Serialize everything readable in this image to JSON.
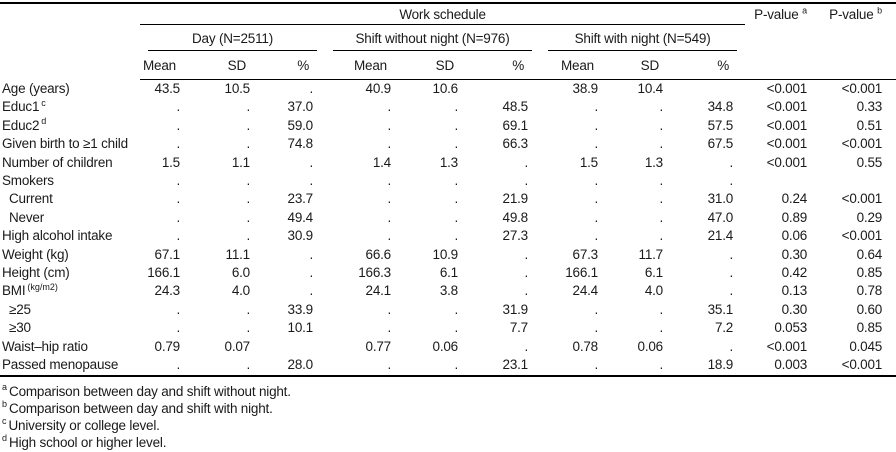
{
  "table": {
    "span_header": "Work schedule",
    "pvalue_headers": [
      {
        "label": "P-value",
        "sup": "a"
      },
      {
        "label": "P-value",
        "sup": "b"
      }
    ],
    "groups": [
      "Day (N=2511)",
      "Shift without night (N=976)",
      "Shift with night (N=549)"
    ],
    "subheaders": [
      "Mean",
      "SD",
      "%"
    ],
    "rows": [
      {
        "label": "Age (years)",
        "sup": "",
        "indent": false,
        "cells": [
          "43.5",
          "10.5",
          ".",
          "40.9",
          "10.6",
          "",
          "38.9",
          "10.4",
          "",
          "<0.001",
          "<0.001"
        ]
      },
      {
        "label": "Educ1",
        "sup": "c",
        "indent": false,
        "cells": [
          ".",
          ".",
          "37.0",
          ".",
          ".",
          "48.5",
          ".",
          ".",
          "34.8",
          "<0.001",
          "0.33"
        ]
      },
      {
        "label": "Educ2",
        "sup": "d",
        "indent": false,
        "cells": [
          ".",
          ".",
          "59.0",
          ".",
          ".",
          "69.1",
          ".",
          ".",
          "57.5",
          "<0.001",
          "0.51"
        ]
      },
      {
        "label": "Given birth to ≥1 child",
        "sup": "",
        "indent": false,
        "cells": [
          ".",
          ".",
          "74.8",
          ".",
          ".",
          "66.3",
          ".",
          ".",
          "67.5",
          "<0.001",
          "<0.001"
        ]
      },
      {
        "label": "Number of children",
        "sup": "",
        "indent": false,
        "cells": [
          "1.5",
          "1.1",
          ".",
          "1.4",
          "1.3",
          ".",
          "1.5",
          "1.3",
          ".",
          "<0.001",
          "0.55"
        ]
      },
      {
        "label": "Smokers",
        "sup": "",
        "indent": false,
        "cells": [
          ".",
          ".",
          ".",
          ".",
          ".",
          ".",
          ".",
          ".",
          ".",
          "",
          ""
        ]
      },
      {
        "label": "Current",
        "sup": "",
        "indent": true,
        "cells": [
          ".",
          ".",
          "23.7",
          ".",
          ".",
          "21.9",
          ".",
          ".",
          "31.0",
          "0.24",
          "<0.001"
        ]
      },
      {
        "label": "Never",
        "sup": "",
        "indent": true,
        "cells": [
          ".",
          ".",
          "49.4",
          ".",
          ".",
          "49.8",
          ".",
          ".",
          "47.0",
          "0.89",
          "0.29"
        ]
      },
      {
        "label": "High alcohol intake",
        "sup": "",
        "indent": false,
        "cells": [
          ".",
          ".",
          "30.9",
          ".",
          ".",
          "27.3",
          ".",
          ".",
          "21.4",
          "0.06",
          "<0.001"
        ]
      },
      {
        "label": "Weight (kg)",
        "sup": "",
        "indent": false,
        "cells": [
          "67.1",
          "11.1",
          ".",
          "66.6",
          "10.9",
          ".",
          "67.3",
          "11.7",
          ".",
          "0.30",
          "0.64"
        ]
      },
      {
        "label": "Height (cm)",
        "sup": "",
        "indent": false,
        "cells": [
          "166.1",
          "6.0",
          ".",
          "166.3",
          "6.1",
          ".",
          "166.1",
          "6.1",
          ".",
          "0.42",
          "0.85"
        ]
      },
      {
        "label": "BMI",
        "sup": "(kg/m2)",
        "indent": false,
        "cells": [
          "24.3",
          "4.0",
          ".",
          "24.1",
          "3.8",
          ".",
          "24.4",
          "4.0",
          ".",
          "0.13",
          "0.78"
        ]
      },
      {
        "label": "≥25",
        "sup": "",
        "indent": true,
        "cells": [
          ".",
          ".",
          "33.9",
          ".",
          ".",
          "31.9",
          ".",
          ".",
          "35.1",
          "0.30",
          "0.60"
        ]
      },
      {
        "label": "≥30",
        "sup": "",
        "indent": true,
        "cells": [
          ".",
          ".",
          "10.1",
          ".",
          ".",
          "7.7",
          ".",
          ".",
          "7.2",
          "0.053",
          "0.85"
        ]
      },
      {
        "label": "Waist–hip ratio",
        "sup": "",
        "indent": false,
        "cells": [
          "0.79",
          "0.07",
          "",
          "0.77",
          "0.06",
          ".",
          "0.78",
          "0.06",
          ".",
          "<0.001",
          "0.045"
        ]
      },
      {
        "label": "Passed menopause",
        "sup": "",
        "indent": false,
        "cells": [
          ".",
          ".",
          "28.0",
          ".",
          ".",
          "23.1",
          ".",
          ".",
          "18.9",
          "0.003",
          "<0.001"
        ]
      }
    ],
    "footnotes": [
      {
        "sup": "a",
        "text": "Comparison between day and shift without night."
      },
      {
        "sup": "b",
        "text": "Comparison between day and shift with night."
      },
      {
        "sup": "c",
        "text": "University or college level."
      },
      {
        "sup": "d",
        "text": "High school or higher level."
      }
    ]
  }
}
